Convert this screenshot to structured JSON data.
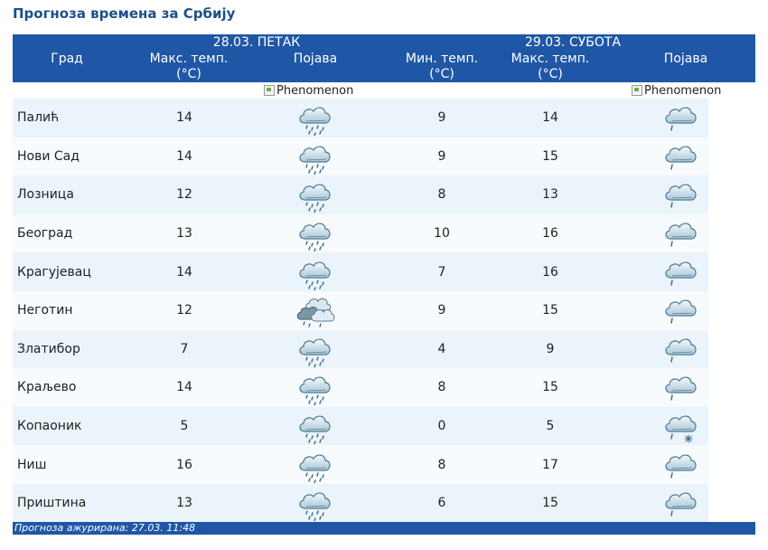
{
  "page_title": "Прогноза времена за Србију",
  "header": {
    "day1": "28.03. ПЕТАК",
    "day2": "29.03. СУБОТА",
    "col_city": "Град",
    "col_max1_line1": "Макс. темп.",
    "col_max1_line2": "(°C)",
    "col_phen1": "Појава",
    "col_min2_line1": "Мин. темп.",
    "col_min2_line2": "(°C)",
    "col_max2_line1": "Макс. темп.",
    "col_max2_line2": "(°C)",
    "col_phen2": "Појава"
  },
  "broken_image_alt": "Phenomenon",
  "rows": [
    {
      "city": "Палић",
      "max1": "14",
      "icon1": "cloud-rain-icon",
      "min2": "9",
      "max2": "14",
      "icon2": "cloud-light-rain-icon"
    },
    {
      "city": "Нови Сад",
      "max1": "14",
      "icon1": "cloud-rain-icon",
      "min2": "9",
      "max2": "15",
      "icon2": "cloud-light-rain-icon"
    },
    {
      "city": "Лозница",
      "max1": "12",
      "icon1": "cloud-rain-icon",
      "min2": "8",
      "max2": "13",
      "icon2": "cloud-light-rain-icon"
    },
    {
      "city": "Београд",
      "max1": "13",
      "icon1": "cloud-rain-icon",
      "min2": "10",
      "max2": "16",
      "icon2": "cloud-light-rain-icon"
    },
    {
      "city": "Крагујевац",
      "max1": "14",
      "icon1": "cloud-rain-icon",
      "min2": "7",
      "max2": "16",
      "icon2": "cloud-light-rain-icon"
    },
    {
      "city": "Неготин",
      "max1": "12",
      "icon1": "cloud-storm-rain-icon",
      "min2": "9",
      "max2": "15",
      "icon2": "cloud-light-rain-icon"
    },
    {
      "city": "Златибор",
      "max1": "7",
      "icon1": "cloud-rain-icon",
      "min2": "4",
      "max2": "9",
      "icon2": "cloud-light-rain-icon"
    },
    {
      "city": "Краљево",
      "max1": "14",
      "icon1": "cloud-rain-icon",
      "min2": "8",
      "max2": "15",
      "icon2": "cloud-light-rain-icon"
    },
    {
      "city": "Копаоник",
      "max1": "5",
      "icon1": "cloud-rain-icon",
      "min2": "0",
      "max2": "5",
      "icon2": "cloud-rain-snow-icon"
    },
    {
      "city": "Ниш",
      "max1": "16",
      "icon1": "cloud-rain-icon",
      "min2": "8",
      "max2": "17",
      "icon2": "cloud-light-rain-icon"
    },
    {
      "city": "Приштина",
      "max1": "13",
      "icon1": "cloud-rain-icon",
      "min2": "6",
      "max2": "15",
      "icon2": "cloud-light-rain-icon"
    }
  ],
  "footer": {
    "text": "Прогноза ажурирана:  27.03. 11:48"
  },
  "colors": {
    "header_bg": "#1f57a6",
    "title": "#1d4f8c",
    "row_bg": "#eaf4fa"
  }
}
